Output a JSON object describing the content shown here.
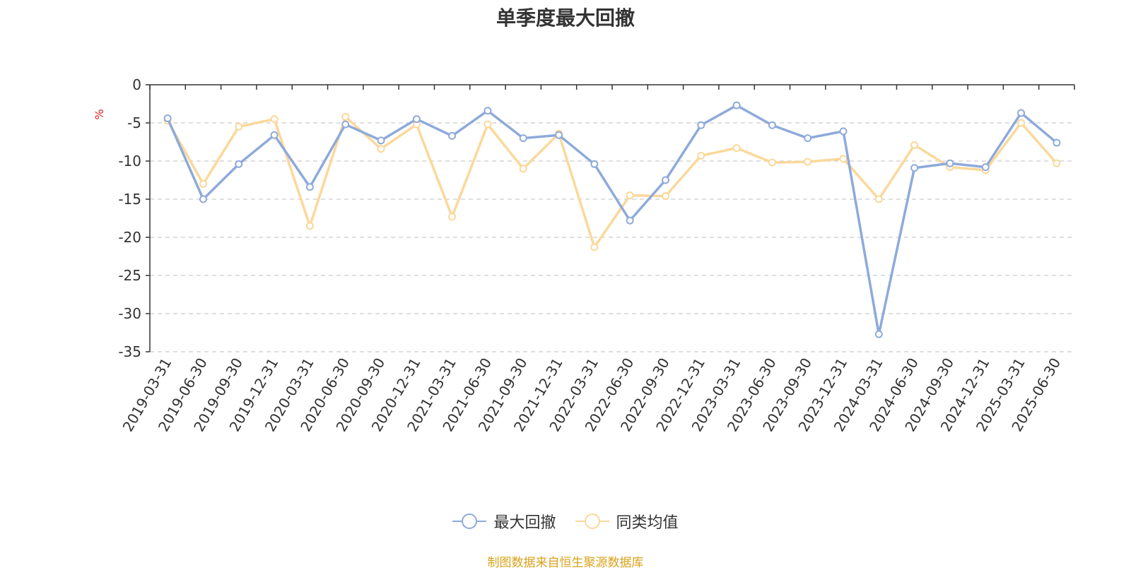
{
  "chart_data": {
    "type": "line",
    "title": "单季度最大回撤",
    "ylabel": "%",
    "ylim": [
      -35,
      0
    ],
    "yticks": [
      0,
      -5,
      -10,
      -15,
      -20,
      -25,
      -30,
      -35
    ],
    "categories": [
      "2019-03-31",
      "2019-06-30",
      "2019-09-30",
      "2019-12-31",
      "2020-03-31",
      "2020-06-30",
      "2020-09-30",
      "2020-12-31",
      "2021-03-31",
      "2021-06-30",
      "2021-09-30",
      "2021-12-31",
      "2022-03-31",
      "2022-06-30",
      "2022-09-30",
      "2022-12-31",
      "2023-03-31",
      "2023-06-30",
      "2023-09-30",
      "2023-12-31",
      "2024-03-31",
      "2024-06-30",
      "2024-09-30",
      "2024-12-31",
      "2025-03-31",
      "2025-06-30"
    ],
    "series": [
      {
        "name": "最大回撤",
        "color": "#8eaadb",
        "values": [
          -4.4,
          -15.0,
          -10.4,
          -6.6,
          -13.4,
          -5.2,
          -7.3,
          -4.5,
          -6.7,
          -3.4,
          -7.0,
          -6.6,
          -10.4,
          -17.8,
          -12.5,
          -5.3,
          -2.7,
          -5.3,
          -7.0,
          -6.1,
          -32.7,
          -10.9,
          -10.3,
          -10.8,
          -3.7,
          -7.6
        ]
      },
      {
        "name": "同类均值",
        "color": "#fbd89a",
        "values": [
          -4.7,
          -13.0,
          -5.5,
          -4.5,
          -18.5,
          -4.2,
          -8.4,
          -5.2,
          -17.3,
          -5.2,
          -11.0,
          -6.4,
          -21.3,
          -14.5,
          -14.6,
          -9.3,
          -8.3,
          -10.2,
          -10.1,
          -9.7,
          -15.0,
          -7.9,
          -10.8,
          -11.2,
          -5.0,
          -10.3
        ]
      }
    ],
    "grid": true,
    "legend_position": "bottom"
  },
  "footer": {
    "source": "制图数据来自恒生聚源数据库"
  }
}
